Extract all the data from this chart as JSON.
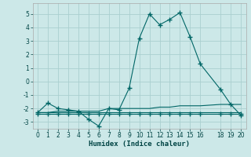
{
  "title": "",
  "xlabel": "Humidex (Indice chaleur)",
  "ylabel": "",
  "bg_color": "#cce8e8",
  "grid_color": "#aacfcf",
  "line_color": "#006666",
  "xlim": [
    -0.5,
    20.5
  ],
  "ylim": [
    -3.5,
    5.8
  ],
  "xticks": [
    0,
    1,
    2,
    3,
    4,
    5,
    6,
    7,
    8,
    9,
    10,
    11,
    12,
    13,
    14,
    15,
    16,
    18,
    19,
    20
  ],
  "yticks": [
    -3,
    -2,
    -1,
    0,
    1,
    2,
    3,
    4,
    5
  ],
  "series1_x": [
    0,
    1,
    2,
    3,
    4,
    5,
    6,
    7,
    8,
    9,
    10,
    11,
    12,
    13,
    14,
    15,
    16,
    18,
    19,
    20
  ],
  "series1_y": [
    -2.3,
    -1.6,
    -2.0,
    -2.1,
    -2.2,
    -2.8,
    -3.3,
    -2.0,
    -2.1,
    -0.5,
    3.2,
    5.0,
    4.2,
    4.6,
    5.1,
    3.3,
    1.3,
    -0.6,
    -1.7,
    -2.5
  ],
  "series2_x": [
    0,
    1,
    2,
    3,
    4,
    5,
    6,
    7,
    8,
    9,
    10,
    11,
    12,
    13,
    14,
    15,
    16,
    18,
    19,
    20
  ],
  "series2_y": [
    -2.4,
    -2.4,
    -2.4,
    -2.4,
    -2.4,
    -2.4,
    -2.4,
    -2.4,
    -2.4,
    -2.4,
    -2.4,
    -2.4,
    -2.4,
    -2.4,
    -2.4,
    -2.4,
    -2.4,
    -2.4,
    -2.4,
    -2.4
  ],
  "series3_x": [
    0,
    1,
    2,
    3,
    4,
    5,
    6,
    7,
    8,
    9,
    10,
    11,
    12,
    13,
    14,
    15,
    16,
    18,
    19,
    20
  ],
  "series3_y": [
    -2.3,
    -2.3,
    -2.2,
    -2.2,
    -2.2,
    -2.2,
    -2.2,
    -2.0,
    -2.0,
    -2.0,
    -2.0,
    -2.0,
    -1.9,
    -1.9,
    -1.8,
    -1.8,
    -1.8,
    -1.7,
    -1.7,
    -1.7
  ],
  "series4_x": [
    0,
    20
  ],
  "series4_y": [
    -2.3,
    -2.3
  ],
  "figwidth": 3.2,
  "figheight": 2.0,
  "dpi": 100
}
